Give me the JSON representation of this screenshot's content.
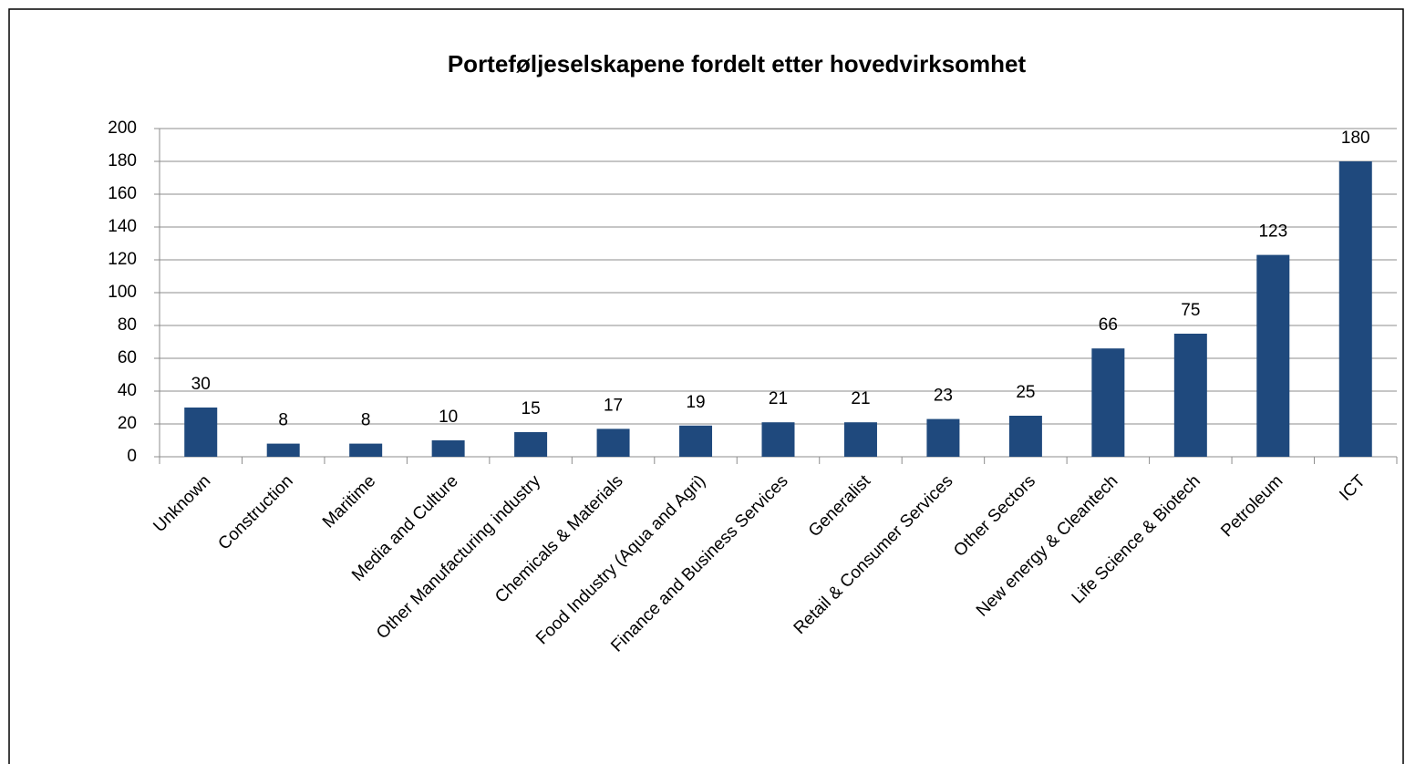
{
  "chart_data": {
    "type": "bar",
    "title": "Porteføljeselskapene fordelt etter hovedvirksomhet",
    "categories": [
      "Unknown",
      "Construction",
      "Maritime",
      "Media and Culture",
      "Other Manufacturing industry",
      "Chemicals & Materials",
      "Food Industry (Aqua and Agri)",
      "Finance and Business Services",
      "Generalist",
      "Retail & Consumer Services",
      "Other Sectors",
      "New energy & Cleantech",
      "Life Science & Biotech",
      "Petroleum",
      "ICT"
    ],
    "values": [
      30,
      8,
      8,
      10,
      15,
      17,
      19,
      21,
      21,
      23,
      25,
      66,
      75,
      123,
      180
    ],
    "color": "#1f497d",
    "ylim": [
      0,
      200
    ],
    "yticks": [
      0,
      20,
      40,
      60,
      80,
      100,
      120,
      140,
      160,
      180,
      200
    ],
    "grid": true
  }
}
